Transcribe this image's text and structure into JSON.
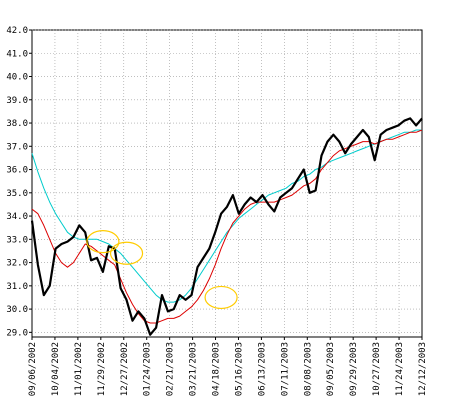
{
  "chart_data": {
    "type": "line",
    "title": "",
    "xlabel": "",
    "ylabel": "",
    "ylim": [
      28.8,
      42.0
    ],
    "y_ticks": [
      "42.0",
      "41.0",
      "40.0",
      "39.0",
      "38.0",
      "37.0",
      "36.0",
      "35.0",
      "34.0",
      "33.0",
      "32.0",
      "31.0",
      "30.0",
      "29.0"
    ],
    "x_ticks": [
      "09/06/2002",
      "10/04/2002",
      "11/01/2002",
      "11/29/2002",
      "12/27/2002",
      "01/24/2003",
      "02/21/2003",
      "03/21/2003",
      "04/18/2003",
      "05/16/2003",
      "06/13/2003",
      "07/11/2003",
      "08/08/2003",
      "09/05/2003",
      "09/29/2003",
      "10/27/2003",
      "11/24/2003",
      "12/12/2003"
    ],
    "x": [
      "09/06/2002",
      "09/13/2002",
      "09/20/2002",
      "09/27/2002",
      "10/04/2002",
      "10/11/2002",
      "10/18/2002",
      "10/25/2002",
      "11/01/2002",
      "11/08/2002",
      "11/15/2002",
      "11/22/2002",
      "11/29/2002",
      "12/06/2002",
      "12/13/2002",
      "12/20/2002",
      "12/27/2002",
      "01/03/2003",
      "01/10/2003",
      "01/17/2003",
      "01/24/2003",
      "01/31/2003",
      "02/07/2003",
      "02/14/2003",
      "02/21/2003",
      "02/28/2003",
      "03/07/2003",
      "03/14/2003",
      "03/21/2003",
      "03/28/2003",
      "04/04/2003",
      "04/11/2003",
      "04/18/2003",
      "04/25/2003",
      "05/02/2003",
      "05/09/2003",
      "05/16/2003",
      "05/23/2003",
      "05/30/2003",
      "06/06/2003",
      "06/13/2003",
      "06/20/2003",
      "06/27/2003",
      "07/04/2003",
      "07/11/2003",
      "07/18/2003",
      "07/25/2003",
      "08/01/2003",
      "08/08/2003",
      "08/15/2003",
      "08/22/2003",
      "08/29/2003",
      "09/05/2003",
      "09/12/2003",
      "09/19/2003",
      "09/29/2003",
      "10/06/2003",
      "10/13/2003",
      "10/20/2003",
      "10/27/2003",
      "11/03/2003",
      "11/10/2003",
      "11/17/2003",
      "11/24/2003",
      "12/01/2003",
      "12/08/2003",
      "12/12/2003"
    ],
    "series": [
      {
        "color": "#000000",
        "values": [
          33.8,
          31.9,
          30.6,
          31.0,
          32.6,
          32.8,
          32.9,
          33.1,
          33.6,
          33.3,
          32.1,
          32.2,
          31.6,
          32.7,
          32.6,
          30.9,
          30.4,
          29.5,
          29.9,
          29.6,
          28.9,
          29.2,
          30.6,
          29.9,
          30.0,
          30.6,
          30.4,
          30.6,
          31.8,
          32.2,
          32.6,
          33.3,
          34.1,
          34.4,
          34.9,
          34.1,
          34.5,
          34.8,
          34.6,
          34.9,
          34.5,
          34.2,
          34.8,
          35.0,
          35.2,
          35.6,
          36.0,
          35.0,
          35.1,
          36.6,
          37.2,
          37.5,
          37.2,
          36.7,
          37.1,
          37.4,
          37.7,
          37.4,
          36.4,
          37.5,
          37.7,
          37.8,
          37.9,
          38.1,
          38.2,
          37.9,
          38.2
        ]
      },
      {
        "color": "#dd0000",
        "values": [
          34.3,
          34.1,
          33.6,
          33.0,
          32.4,
          32.0,
          31.8,
          32.0,
          32.4,
          32.8,
          32.7,
          32.5,
          32.3,
          32.1,
          31.9,
          31.3,
          30.7,
          30.2,
          29.8,
          29.5,
          29.4,
          29.4,
          29.5,
          29.6,
          29.6,
          29.7,
          29.9,
          30.1,
          30.4,
          30.8,
          31.3,
          31.9,
          32.6,
          33.2,
          33.7,
          34.0,
          34.3,
          34.5,
          34.6,
          34.6,
          34.6,
          34.6,
          34.7,
          34.8,
          34.9,
          35.1,
          35.3,
          35.4,
          35.6,
          36.0,
          36.3,
          36.6,
          36.8,
          36.9,
          37.0,
          37.1,
          37.2,
          37.2,
          37.1,
          37.2,
          37.3,
          37.3,
          37.4,
          37.5,
          37.6,
          37.6,
          37.7
        ]
      },
      {
        "color": "#00cccc",
        "values": [
          36.7,
          35.9,
          35.2,
          34.6,
          34.1,
          33.7,
          33.3,
          33.1,
          33.0,
          33.0,
          33.0,
          33.0,
          32.9,
          32.8,
          32.6,
          32.4,
          32.1,
          31.8,
          31.5,
          31.2,
          30.9,
          30.6,
          30.4,
          30.3,
          30.3,
          30.4,
          30.6,
          30.9,
          31.3,
          31.7,
          32.1,
          32.5,
          32.9,
          33.3,
          33.6,
          33.9,
          34.1,
          34.3,
          34.5,
          34.7,
          34.9,
          35.0,
          35.1,
          35.2,
          35.4,
          35.5,
          35.7,
          35.8,
          36.0,
          36.1,
          36.3,
          36.4,
          36.5,
          36.6,
          36.7,
          36.8,
          36.9,
          37.0,
          37.1,
          37.2,
          37.3,
          37.4,
          37.5,
          37.6,
          37.6,
          37.7,
          37.7
        ]
      }
    ],
    "annotations": [
      {
        "type": "ellipse",
        "color": "#ffcc00",
        "x": "11/29/2002",
        "y": 32.9
      },
      {
        "type": "ellipse",
        "color": "#ffcc00",
        "x": "12/27/2002",
        "y": 32.4
      },
      {
        "type": "ellipse",
        "color": "#ffcc00",
        "x": "04/18/2003",
        "y": 30.5
      }
    ],
    "grid": true
  }
}
